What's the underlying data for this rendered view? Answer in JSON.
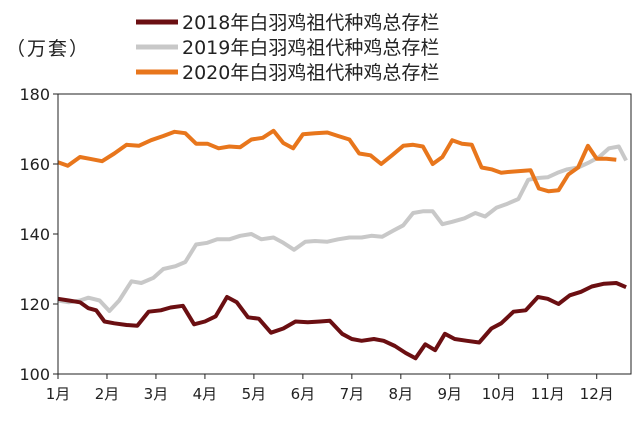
{
  "chart_data": {
    "type": "line",
    "title": "",
    "unit_label": "（万套）",
    "xlabel": "",
    "ylabel": "",
    "ylim": [
      100,
      180
    ],
    "yticks": [
      100,
      120,
      140,
      160,
      180
    ],
    "xlim": [
      1,
      12.7
    ],
    "month_ticks": [
      "1月",
      "2月",
      "3月",
      "4月",
      "5月",
      "6月",
      "7月",
      "8月",
      "9月",
      "10月",
      "11月",
      "12月"
    ],
    "legend_position": "top",
    "colors": {
      "2018": "#6b0f12",
      "2019": "#c8c8c8",
      "2020": "#e8761c"
    },
    "series": [
      {
        "name": "2018年白羽鸡祖代种鸡总存栏",
        "key": "2018",
        "values": [
          [
            1.0,
            121.5
          ],
          [
            1.22,
            121.0
          ],
          [
            1.45,
            120.5
          ],
          [
            1.62,
            118.8
          ],
          [
            1.78,
            118.2
          ],
          [
            1.95,
            115.0
          ],
          [
            2.15,
            114.5
          ],
          [
            2.4,
            114.0
          ],
          [
            2.62,
            113.8
          ],
          [
            2.85,
            117.8
          ],
          [
            3.1,
            118.2
          ],
          [
            3.3,
            119.0
          ],
          [
            3.55,
            119.5
          ],
          [
            3.78,
            114.2
          ],
          [
            4.0,
            115.0
          ],
          [
            4.22,
            116.5
          ],
          [
            4.45,
            122.0
          ],
          [
            4.65,
            120.5
          ],
          [
            4.88,
            116.2
          ],
          [
            5.1,
            115.8
          ],
          [
            5.35,
            111.8
          ],
          [
            5.6,
            113.0
          ],
          [
            5.85,
            115.0
          ],
          [
            6.1,
            114.8
          ],
          [
            6.35,
            115.0
          ],
          [
            6.55,
            115.2
          ],
          [
            6.8,
            111.5
          ],
          [
            7.0,
            110.0
          ],
          [
            7.2,
            109.5
          ],
          [
            7.45,
            110.0
          ],
          [
            7.65,
            109.5
          ],
          [
            7.88,
            108.0
          ],
          [
            8.1,
            106.0
          ],
          [
            8.3,
            104.5
          ],
          [
            8.5,
            108.5
          ],
          [
            8.7,
            106.8
          ],
          [
            8.9,
            111.5
          ],
          [
            9.1,
            110.0
          ],
          [
            9.35,
            109.5
          ],
          [
            9.6,
            109.0
          ],
          [
            9.85,
            113.0
          ],
          [
            10.05,
            114.5
          ],
          [
            10.3,
            117.8
          ],
          [
            10.55,
            118.2
          ],
          [
            10.8,
            122.0
          ],
          [
            11.0,
            121.5
          ],
          [
            11.22,
            120.0
          ],
          [
            11.45,
            122.5
          ],
          [
            11.68,
            123.5
          ],
          [
            11.9,
            125.0
          ],
          [
            12.15,
            125.8
          ],
          [
            12.4,
            126.0
          ],
          [
            12.6,
            124.8
          ]
        ]
      },
      {
        "name": "2019年白羽鸡祖代种鸡总存栏",
        "key": "2019",
        "values": [
          [
            1.0,
            121.0
          ],
          [
            1.22,
            120.5
          ],
          [
            1.45,
            121.0
          ],
          [
            1.62,
            121.8
          ],
          [
            1.85,
            121.0
          ],
          [
            2.05,
            118.0
          ],
          [
            2.25,
            121.0
          ],
          [
            2.5,
            126.5
          ],
          [
            2.7,
            126.0
          ],
          [
            2.95,
            127.5
          ],
          [
            3.15,
            130.0
          ],
          [
            3.4,
            130.8
          ],
          [
            3.6,
            132.0
          ],
          [
            3.82,
            137.0
          ],
          [
            4.05,
            137.5
          ],
          [
            4.25,
            138.5
          ],
          [
            4.5,
            138.5
          ],
          [
            4.72,
            139.5
          ],
          [
            4.95,
            140.0
          ],
          [
            5.15,
            138.5
          ],
          [
            5.4,
            139.0
          ],
          [
            5.6,
            137.5
          ],
          [
            5.82,
            135.5
          ],
          [
            6.05,
            137.8
          ],
          [
            6.25,
            138.0
          ],
          [
            6.5,
            137.8
          ],
          [
            6.72,
            138.5
          ],
          [
            6.95,
            139.0
          ],
          [
            7.2,
            139.0
          ],
          [
            7.4,
            139.5
          ],
          [
            7.62,
            139.2
          ],
          [
            7.85,
            141.0
          ],
          [
            8.05,
            142.5
          ],
          [
            8.25,
            146.0
          ],
          [
            8.45,
            146.5
          ],
          [
            8.65,
            146.5
          ],
          [
            8.85,
            142.8
          ],
          [
            9.05,
            143.5
          ],
          [
            9.3,
            144.5
          ],
          [
            9.52,
            146.0
          ],
          [
            9.72,
            145.0
          ],
          [
            9.95,
            147.5
          ],
          [
            10.15,
            148.5
          ],
          [
            10.4,
            150.0
          ],
          [
            10.6,
            155.5
          ],
          [
            10.8,
            156.0
          ],
          [
            11.0,
            156.2
          ],
          [
            11.2,
            157.5
          ],
          [
            11.4,
            158.5
          ],
          [
            11.62,
            159.0
          ],
          [
            11.85,
            160.5
          ],
          [
            12.05,
            162.0
          ],
          [
            12.25,
            164.5
          ],
          [
            12.45,
            165.0
          ],
          [
            12.6,
            161.0
          ]
        ]
      },
      {
        "name": "2020年白羽鸡祖代种鸡总存栏",
        "key": "2020",
        "values": [
          [
            1.0,
            160.5
          ],
          [
            1.2,
            159.5
          ],
          [
            1.45,
            162.0
          ],
          [
            1.65,
            161.5
          ],
          [
            1.9,
            160.8
          ],
          [
            2.15,
            163.0
          ],
          [
            2.4,
            165.5
          ],
          [
            2.65,
            165.2
          ],
          [
            2.9,
            166.8
          ],
          [
            3.15,
            168.0
          ],
          [
            3.38,
            169.2
          ],
          [
            3.6,
            168.8
          ],
          [
            3.82,
            165.8
          ],
          [
            4.05,
            165.8
          ],
          [
            4.28,
            164.5
          ],
          [
            4.5,
            165.0
          ],
          [
            4.72,
            164.8
          ],
          [
            4.95,
            167.0
          ],
          [
            5.18,
            167.5
          ],
          [
            5.4,
            169.5
          ],
          [
            5.6,
            166.0
          ],
          [
            5.8,
            164.5
          ],
          [
            6.0,
            168.5
          ],
          [
            6.25,
            168.8
          ],
          [
            6.5,
            169.0
          ],
          [
            6.72,
            168.0
          ],
          [
            6.95,
            167.0
          ],
          [
            7.15,
            163.0
          ],
          [
            7.38,
            162.5
          ],
          [
            7.6,
            160.0
          ],
          [
            7.82,
            162.5
          ],
          [
            8.05,
            165.2
          ],
          [
            8.25,
            165.5
          ],
          [
            8.45,
            165.0
          ],
          [
            8.65,
            160.0
          ],
          [
            8.85,
            162.0
          ],
          [
            9.05,
            166.8
          ],
          [
            9.25,
            165.8
          ],
          [
            9.45,
            165.5
          ],
          [
            9.65,
            159.0
          ],
          [
            9.85,
            158.5
          ],
          [
            10.05,
            157.5
          ],
          [
            10.25,
            157.8
          ],
          [
            10.45,
            158.0
          ],
          [
            10.65,
            158.2
          ],
          [
            10.82,
            153.0
          ],
          [
            11.02,
            152.2
          ],
          [
            11.22,
            152.5
          ],
          [
            11.42,
            157.0
          ],
          [
            11.62,
            159.0
          ],
          [
            11.82,
            165.2
          ],
          [
            12.0,
            161.5
          ],
          [
            12.2,
            161.5
          ],
          [
            12.4,
            161.2
          ]
        ]
      }
    ]
  }
}
